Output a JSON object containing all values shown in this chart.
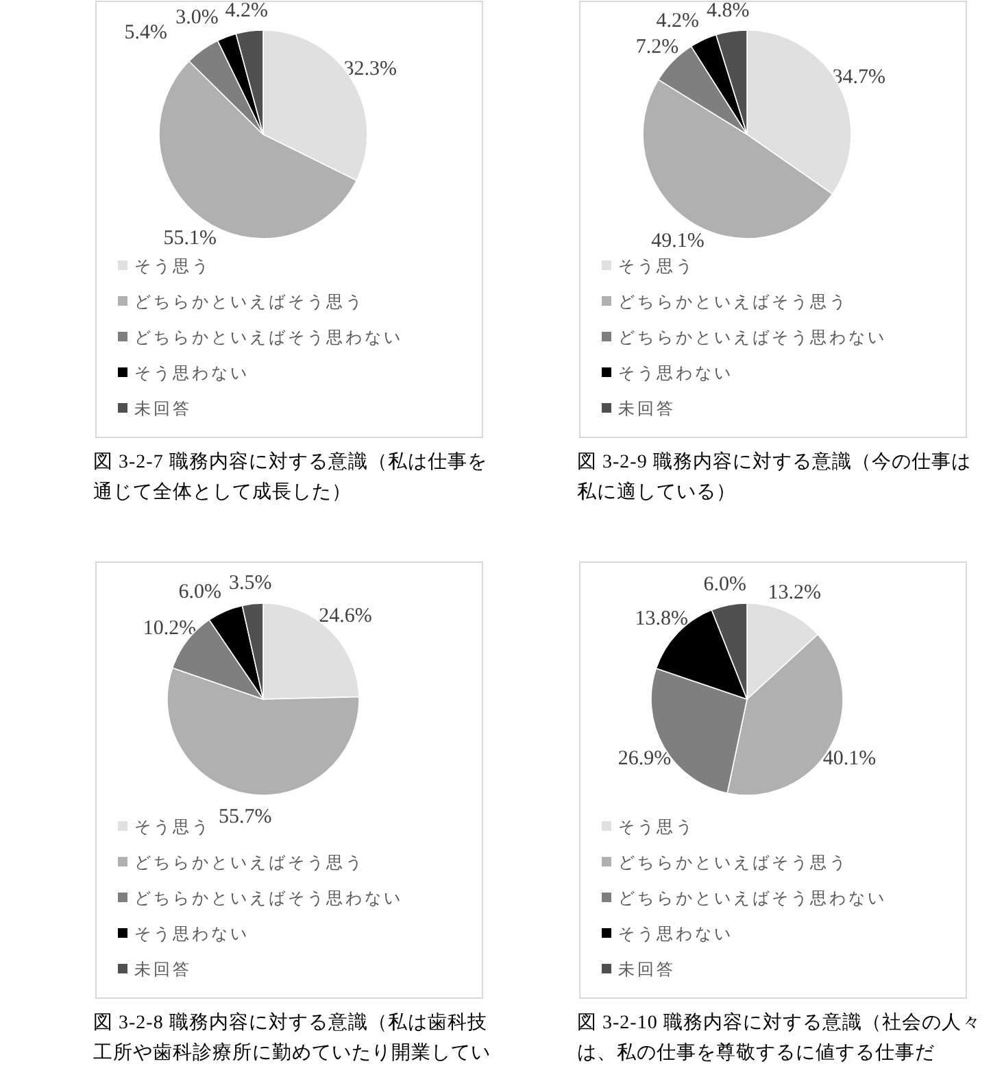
{
  "chart_data": [
    {
      "type": "pie",
      "title": "図 3-2-7 職務内容に対する意識（私は仕事を通じて全体として成長した）",
      "categories": [
        "そう思う",
        "どちらかといえばそう思う",
        "どちらかといえばそう思わない",
        "そう思わない",
        "未回答"
      ],
      "values": [
        32.3,
        55.1,
        5.4,
        3.0,
        4.2
      ],
      "value_labels": [
        "32.3%",
        "55.1%",
        "5.4%",
        "3.0%",
        "4.2%"
      ],
      "colors": [
        "#e0e0e0",
        "#b0b0b0",
        "#7f7f7f",
        "#000000",
        "#505050"
      ],
      "legend": "bottom"
    },
    {
      "type": "pie",
      "title": "図 3-2-9 職務内容に対する意識（今の仕事は私に適している）",
      "categories": [
        "そう思う",
        "どちらかといえばそう思う",
        "どちらかといえばそう思わない",
        "そう思わない",
        "未回答"
      ],
      "values": [
        34.7,
        49.1,
        7.2,
        4.2,
        4.8
      ],
      "value_labels": [
        "34.7%",
        "49.1%",
        "7.2%",
        "4.2%",
        "4.8%"
      ],
      "colors": [
        "#e0e0e0",
        "#b0b0b0",
        "#7f7f7f",
        "#000000",
        "#505050"
      ],
      "legend": "bottom"
    },
    {
      "type": "pie",
      "title": "図 3-2-8 職務内容に対する意識（私は歯科技工所や歯科診療所に勤めていたり開業してい",
      "categories": [
        "そう思う",
        "どちらかといえばそう思う",
        "どちらかといえばそう思わない",
        "そう思わない",
        "未回答"
      ],
      "values": [
        24.6,
        55.7,
        10.2,
        6.0,
        3.5
      ],
      "value_labels": [
        "24.6%",
        "55.7%",
        "10.2%",
        "6.0%",
        "3.5%"
      ],
      "colors": [
        "#e0e0e0",
        "#b0b0b0",
        "#7f7f7f",
        "#000000",
        "#505050"
      ],
      "legend": "bottom"
    },
    {
      "type": "pie",
      "title": "図 3-2-10 職務内容に対する意識（社会の人々は、私の仕事を尊敬するに値する仕事だ",
      "categories": [
        "そう思う",
        "どちらかといえばそう思う",
        "どちらかといえばそう思わない",
        "そう思わない",
        "未回答"
      ],
      "values": [
        13.2,
        40.1,
        26.9,
        13.8,
        6.0
      ],
      "value_labels": [
        "13.2%",
        "40.1%",
        "26.9%",
        "13.8%",
        "6.0%"
      ],
      "colors": [
        "#e0e0e0",
        "#b0b0b0",
        "#7f7f7f",
        "#000000",
        "#505050"
      ],
      "legend": "bottom"
    }
  ]
}
